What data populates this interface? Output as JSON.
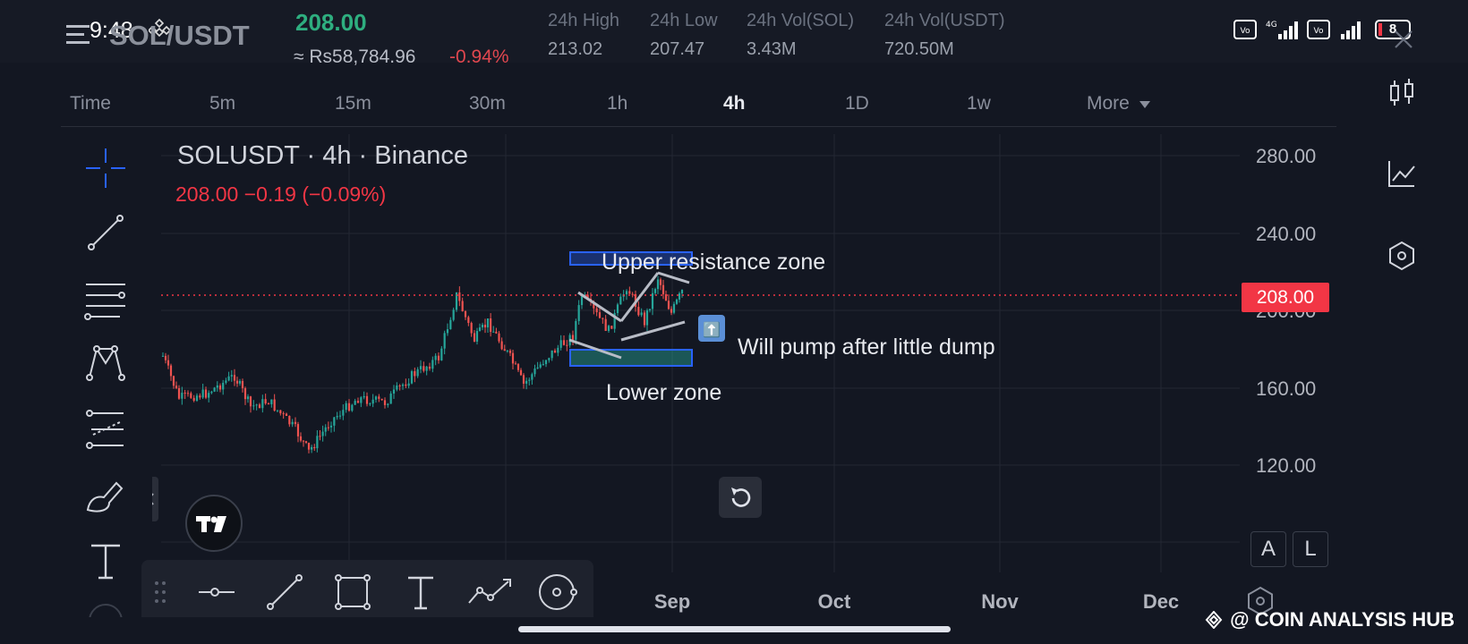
{
  "status_bar": {
    "time": "9:48",
    "battery": "8"
  },
  "header": {
    "pair": "SOL/USDT",
    "last_price": "208.00",
    "fiat_price": "≈ Rs58,784.96",
    "change_pct": "-0.94%",
    "stats": [
      {
        "label": "24h High",
        "value": "213.02"
      },
      {
        "label": "24h Low",
        "value": "207.47"
      },
      {
        "label": "24h Vol(SOL)",
        "value": "3.43M"
      },
      {
        "label": "24h Vol(USDT)",
        "value": "720.50M"
      }
    ]
  },
  "timeframes": {
    "time_label": "Time",
    "items": [
      "5m",
      "15m",
      "30m",
      "1h",
      "4h",
      "1D",
      "1w"
    ],
    "active": "4h",
    "more_label": "More"
  },
  "chart": {
    "symbol_title": "SOLUSDT · 4h · Binance",
    "quote_line": "208.00  −0.19 (−0.09%)",
    "current_price_tag": "208.00",
    "y_ticks": [
      "280.00",
      "240.00",
      "200.00",
      "160.00",
      "120.00"
    ],
    "x_ticks": [
      "Sep",
      "Oct",
      "Nov",
      "Dec"
    ],
    "annotations": {
      "upper": "Upper resistance zone",
      "lower": "Lower zone",
      "note": "Will pump after little dump",
      "arrow": "⬆️"
    },
    "scale_buttons": {
      "auto": "A",
      "log": "L"
    }
  },
  "watermark": "@ COIN ANALYSIS HUB",
  "colors": {
    "up": "#26a69a",
    "down": "#ef5350",
    "accent": "#f23645",
    "zone": "#2962ff",
    "bg": "#131722"
  }
}
